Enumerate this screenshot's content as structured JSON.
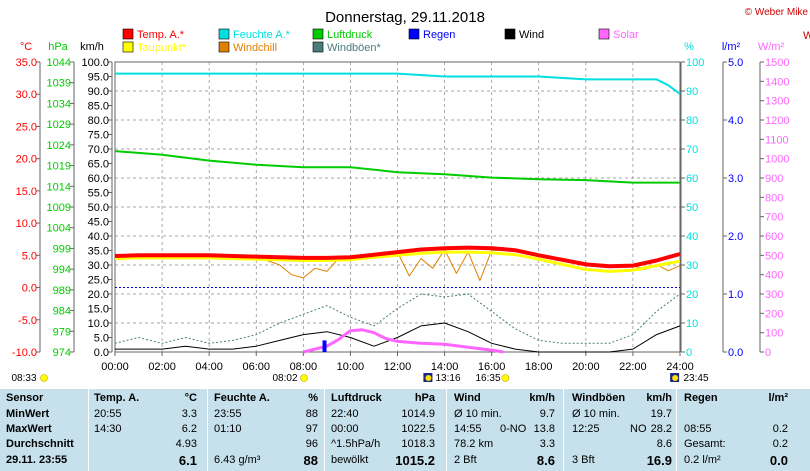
{
  "title": "Donnerstag, 29.11.2018",
  "copyright": "© Weber Mike",
  "colors": {
    "temp": "#ff0000",
    "humidity": "#00e0e0",
    "pressure": "#00cc00",
    "wind": "#000000",
    "solar": "#ff66ff",
    "dewpoint": "#ffff00",
    "windchill": "#e08000",
    "gust": "#4a7c7c",
    "rain": "#0000ff"
  },
  "legend": [
    {
      "label": "Temp. A.*",
      "color": "#ff0000"
    },
    {
      "label": "Feuchte A.*",
      "color": "#00e0e0"
    },
    {
      "label": "Luftdruck",
      "color": "#00cc00"
    },
    {
      "label": "Regen",
      "color": "#0000ff"
    },
    {
      "label": "Wind",
      "color": "#000000"
    },
    {
      "label": "Solar",
      "color": "#ff66ff"
    },
    {
      "label": "Taupunkt*",
      "color": "#ffff00"
    },
    {
      "label": "Windchill",
      "color": "#e08000"
    },
    {
      "label": "Windböen*",
      "color": "#4a7c7c"
    }
  ],
  "units": {
    "temp": "°C",
    "pressure": "hPa",
    "wind": "km/h",
    "humidity": "%",
    "rain": "l/m²",
    "solar": "W/m²",
    "solar_partial": "W"
  },
  "chart_data": {
    "type": "line",
    "x_ticks": [
      "00:00",
      "02:00",
      "04:00",
      "06:00",
      "08:00",
      "10:00",
      "12:00",
      "14:00",
      "16:00",
      "18:00",
      "20:00",
      "22:00",
      "24:00"
    ],
    "axes": {
      "temp": {
        "ticks": [
          "35.0",
          "30.0",
          "25.0",
          "20.0",
          "15.0",
          "10.0",
          "5.0",
          "0.0",
          "-5.0",
          "-10.0"
        ],
        "range": [
          -10,
          35
        ]
      },
      "pressure": {
        "ticks": [
          "1044",
          "1039",
          "1034",
          "1029",
          "1024",
          "1019",
          "1014",
          "1009",
          "1004",
          "999",
          "994",
          "989",
          "984",
          "979",
          "974"
        ],
        "range": [
          974,
          1044
        ]
      },
      "wind": {
        "ticks": [
          "100.0",
          "95.0",
          "90.0",
          "85.0",
          "80.0",
          "75.0",
          "70.0",
          "65.0",
          "60.0",
          "55.0",
          "50.0",
          "45.0",
          "40.0",
          "35.0",
          "30.0",
          "25.0",
          "20.0",
          "15.0",
          "10.0",
          "5.0",
          "0.0"
        ],
        "range": [
          0,
          100
        ]
      },
      "humidity": {
        "ticks": [
          "100",
          "90",
          "80",
          "70",
          "60",
          "50",
          "40",
          "30",
          "20",
          "10",
          "0"
        ],
        "range": [
          0,
          100
        ]
      },
      "rain": {
        "ticks": [
          "5.0",
          "4.0",
          "3.0",
          "2.0",
          "1.0",
          "0.0"
        ],
        "range": [
          0,
          5
        ]
      },
      "solar": {
        "ticks": [
          "1500",
          "1400",
          "1300",
          "1200",
          "1100",
          "1000",
          "900",
          "800",
          "700",
          "600",
          "500",
          "400",
          "300",
          "200",
          "100",
          "0"
        ],
        "range": [
          0,
          1500
        ]
      }
    },
    "series": [
      {
        "name": "Temp. A.*",
        "axis": "temp",
        "x": [
          0,
          1,
          2,
          3,
          4,
          5,
          6,
          7,
          8,
          9,
          10,
          11,
          12,
          13,
          14,
          15,
          16,
          17,
          18,
          19,
          20,
          21,
          22,
          23,
          24
        ],
        "values": [
          4.9,
          5.0,
          5.0,
          5.0,
          5.0,
          4.9,
          4.8,
          4.7,
          4.6,
          4.6,
          4.7,
          5.1,
          5.5,
          5.9,
          6.1,
          6.2,
          6.1,
          5.8,
          5.0,
          4.3,
          3.6,
          3.3,
          3.4,
          4.2,
          5.2
        ]
      },
      {
        "name": "Taupunkt*",
        "axis": "temp",
        "x": [
          0,
          1,
          2,
          3,
          4,
          5,
          6,
          7,
          8,
          9,
          10,
          11,
          12,
          13,
          14,
          15,
          16,
          17,
          18,
          19,
          20,
          21,
          22,
          23,
          24
        ],
        "values": [
          4.5,
          4.6,
          4.6,
          4.6,
          4.6,
          4.5,
          4.4,
          4.3,
          4.2,
          4.2,
          4.3,
          4.7,
          5.0,
          5.3,
          5.5,
          5.5,
          5.4,
          5.1,
          4.4,
          3.6,
          2.8,
          2.5,
          2.7,
          3.4,
          4.1
        ]
      },
      {
        "name": "Feuchte A.*",
        "axis": "humidity",
        "x": [
          0,
          2,
          4,
          6,
          8,
          10,
          12,
          14,
          16,
          18,
          20,
          22,
          23,
          23.5,
          24
        ],
        "values": [
          96,
          96,
          96,
          96,
          96,
          96,
          96,
          95,
          95,
          95,
          94,
          94,
          94,
          92,
          89
        ]
      },
      {
        "name": "Luftdruck",
        "axis": "pressure",
        "x": [
          0,
          2,
          4,
          6,
          8,
          10,
          12,
          14,
          16,
          18,
          20,
          22,
          24
        ],
        "values": [
          1022.5,
          1021.6,
          1020.2,
          1019.2,
          1018.6,
          1018.6,
          1017.4,
          1016.9,
          1016.1,
          1015.7,
          1015.5,
          1014.9,
          1014.9
        ]
      },
      {
        "name": "Windchill",
        "axis": "temp",
        "x": [
          0,
          6,
          7,
          7.5,
          8,
          8.5,
          9,
          9.5,
          10,
          11,
          12,
          12.5,
          13,
          13.5,
          14,
          14.5,
          15,
          15.5,
          16,
          17,
          18,
          19,
          20,
          21,
          22,
          22.5,
          23,
          23.5,
          24
        ],
        "values": [
          4.9,
          4.8,
          3.5,
          2.0,
          1.5,
          3.0,
          2.5,
          4.5,
          4.6,
          5.1,
          5.5,
          1.8,
          4.5,
          3.0,
          5.9,
          2.2,
          5.5,
          1.1,
          5.8,
          5.8,
          5.0,
          4.3,
          3.6,
          3.3,
          3.4,
          2.8,
          3.6,
          2.6,
          3.4
        ]
      },
      {
        "name": "Wind",
        "axis": "wind",
        "x": [
          0,
          1,
          2,
          3,
          4,
          5,
          6,
          7,
          8,
          9,
          10,
          11,
          12,
          13,
          14,
          15,
          16,
          17,
          18,
          19,
          20,
          21,
          22,
          23,
          24
        ],
        "values": [
          1,
          1,
          1,
          2,
          1,
          1,
          2,
          4,
          6,
          7,
          5,
          2,
          5,
          9,
          10,
          7,
          3,
          1,
          0,
          0,
          0,
          0,
          1,
          6,
          9
        ]
      },
      {
        "name": "Windböen*",
        "axis": "wind",
        "x": [
          0,
          1,
          2,
          3,
          4,
          5,
          6,
          7,
          8,
          9,
          10,
          11,
          12,
          13,
          14,
          15,
          16,
          17,
          18,
          19,
          20,
          21,
          22,
          23,
          24
        ],
        "values": [
          3,
          5,
          3,
          5,
          3,
          4,
          6,
          10,
          13,
          16,
          12,
          9,
          15,
          20,
          19,
          20,
          14,
          8,
          4,
          3,
          3,
          3,
          6,
          14,
          20
        ]
      },
      {
        "name": "Solar",
        "axis": "solar",
        "x": [
          8,
          9,
          9.5,
          10,
          10.5,
          11,
          11.5,
          12,
          13,
          14,
          15,
          16,
          16.5
        ],
        "values": [
          0,
          30,
          65,
          110,
          115,
          100,
          70,
          55,
          45,
          40,
          25,
          10,
          0
        ]
      },
      {
        "name": "Regen",
        "axis": "rain",
        "x": [
          8.9
        ],
        "values": [
          0.2
        ]
      }
    ],
    "time_markers": [
      {
        "label": "08:33",
        "symbol": "sun",
        "x": 0
      },
      {
        "label": "08:02",
        "symbol": "sun",
        "x": 8.03
      },
      {
        "label": "13:16",
        "symbol": "moon",
        "x": 13.27
      },
      {
        "label": "16:35",
        "symbol": "sun",
        "x": 16.58
      },
      {
        "label": "23:45",
        "symbol": "moon",
        "x": 23.75
      }
    ]
  },
  "table": {
    "rows": [
      {
        "label": "Sensor",
        "temp_time": "Temp. A.",
        "temp_val": "°C",
        "hum_time": "Feuchte A.",
        "hum_val": "%",
        "press_time": "Luftdruck",
        "press_val": "hPa",
        "wind_time": "Wind",
        "wind_val": "km/h",
        "gust_time": "Windböen",
        "gust_val": "km/h",
        "rain_time": "Regen",
        "rain_val": "l/m²"
      },
      {
        "label": "MinWert",
        "temp_time": "20:55",
        "temp_val": "3.3",
        "hum_time": "23:55",
        "hum_val": "88",
        "press_time": "22:40",
        "press_val": "1014.9",
        "wind_time": "Ø 10 min.",
        "wind_val": "9.7",
        "gust_time": "Ø 10 min.",
        "gust_val": "19.7",
        "rain_time": "",
        "rain_val": ""
      },
      {
        "label": "MaxWert",
        "temp_time": "14:30",
        "temp_val": "6.2",
        "hum_time": "01:10",
        "hum_val": "97",
        "press_time": "00:00",
        "press_val": "1022.5",
        "wind_time": "14:55",
        "wind_mid": "0-NO",
        "wind_val": "13.8",
        "gust_time": "12:25",
        "gust_mid": "NO",
        "gust_val": "28.2",
        "rain_time": "08:55",
        "rain_val": "0.2"
      },
      {
        "label": "Durchschnitt",
        "temp_time": "",
        "temp_val": "4.93",
        "hum_time": "",
        "hum_val": "96",
        "press_time": "^1.5hPa/h",
        "press_val": "1018.3",
        "wind_time": "78.2 km",
        "wind_val": "3.3",
        "gust_time": "",
        "gust_val": "8.6",
        "rain_time": "Gesamt:",
        "rain_val": "0.2"
      },
      {
        "label": "29.11. 23:55",
        "temp_time": "",
        "temp_val": "6.1",
        "hum_time": "6.43 g/m³",
        "hum_val": "88",
        "press_time": "bewölkt",
        "press_val": "1015.2",
        "wind_time": "2 Bft",
        "wind_val": "8.6",
        "gust_time": "3 Bft",
        "gust_val": "16.9",
        "rain_time": "0.2 l/m²",
        "rain_val": "0.0"
      }
    ]
  }
}
